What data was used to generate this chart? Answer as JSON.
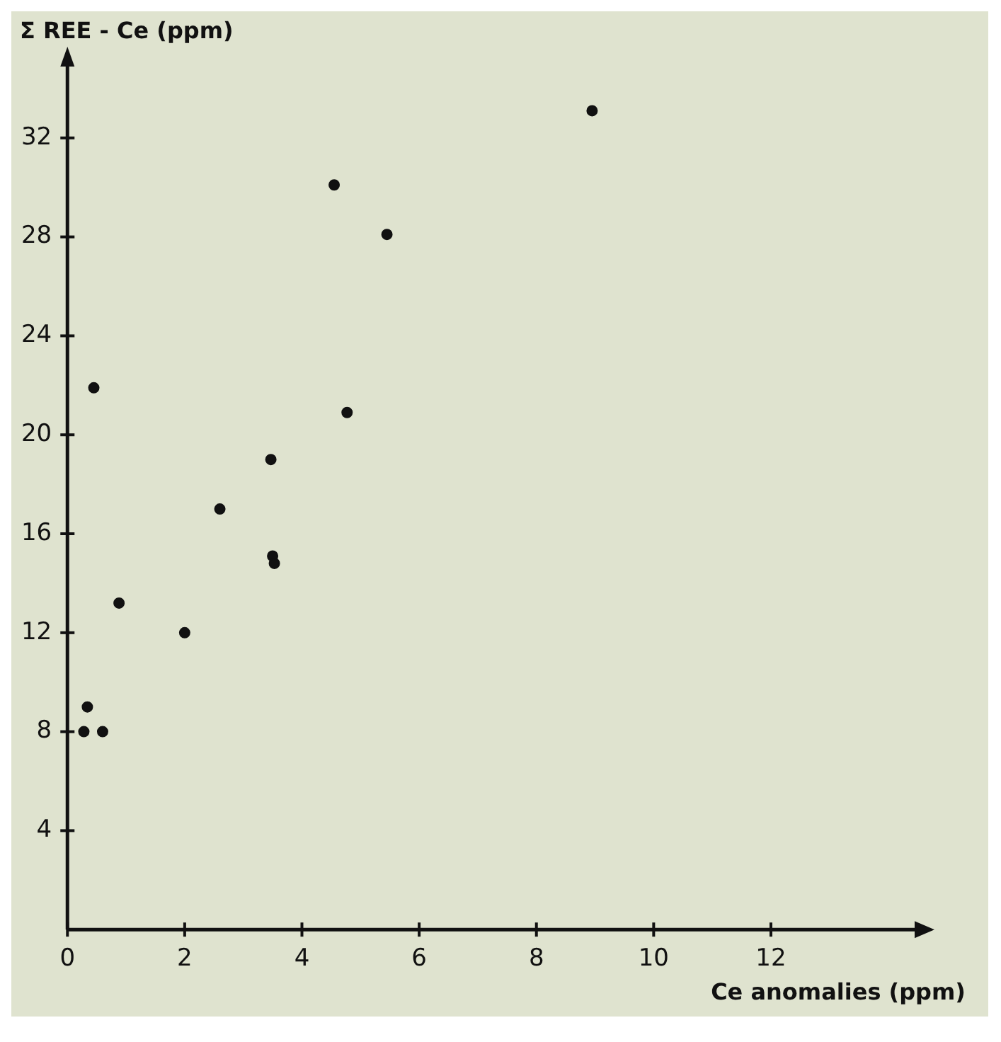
{
  "chart_data": {
    "type": "scatter",
    "xlabel": "Ce anomalies (ppm)",
    "ylabel": "Σ REE - Ce (ppm)",
    "x": [
      8.95,
      4.55,
      5.45,
      0.45,
      4.77,
      3.47,
      2.6,
      3.5,
      3.53,
      0.88,
      2.0,
      0.34,
      0.28,
      0.6
    ],
    "series": [
      {
        "color": "#111111",
        "values": [
          33.1,
          30.1,
          28.1,
          21.9,
          20.9,
          19.0,
          17.0,
          15.1,
          14.8,
          13.2,
          12.0,
          9.0,
          8.0,
          8.0
        ]
      }
    ],
    "xlim": [
      0,
      14.5
    ],
    "ylim": [
      0,
      35
    ],
    "xticks": [
      0,
      2,
      4,
      6,
      8,
      10,
      12
    ],
    "yticks": [
      4,
      8,
      12,
      16,
      20,
      24,
      28,
      32
    ],
    "grid": false,
    "legend": false,
    "marker": "circle"
  }
}
